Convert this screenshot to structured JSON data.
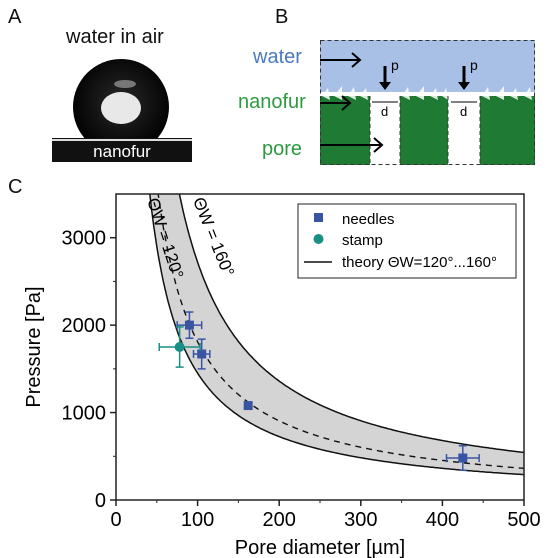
{
  "panels": {
    "a_label": "A",
    "b_label": "B",
    "c_label": "C"
  },
  "panel_a": {
    "title": "water in air",
    "substrate_label": "nanofur"
  },
  "panel_b": {
    "water_label": "water",
    "nanofur_label": "nanofur",
    "pore_label": "pore",
    "pressure_symbol": "p",
    "diameter_symbol": "d",
    "colors": {
      "water": "#a9c0e6",
      "nanofur": "#1f7a34",
      "water_text": "#4a78c0",
      "green_text": "#2e9a40"
    }
  },
  "chart_data": {
    "type": "scatter",
    "xlabel": "Pore diameter [µm]",
    "ylabel": "Pressure [Pa]",
    "xlim": [
      0,
      500
    ],
    "ylim": [
      0,
      3500
    ],
    "x_ticks": [
      0,
      100,
      200,
      300,
      400,
      500
    ],
    "y_ticks": [
      0,
      1000,
      2000,
      3000
    ],
    "grid": false,
    "legend_position": "top-right",
    "series": [
      {
        "name": "needles",
        "marker": "square",
        "color": "#3a54a4",
        "points": [
          {
            "x": 90,
            "y": 2000,
            "xerr": 15,
            "yerr": 150
          },
          {
            "x": 105,
            "y": 1670,
            "xerr": 10,
            "yerr": 170
          },
          {
            "x": 162,
            "y": 1080,
            "xerr": 0,
            "yerr": 0
          },
          {
            "x": 425,
            "y": 480,
            "xerr": 20,
            "yerr": 140
          }
        ]
      },
      {
        "name": "stamp",
        "marker": "circle",
        "color": "#1a8f87",
        "points": [
          {
            "x": 78,
            "y": 1750,
            "xerr": 25,
            "yerr": 230
          }
        ]
      },
      {
        "name": "theory ΘW=120°...160°",
        "marker": "line",
        "color": "#111111",
        "band_fill": "#d4d4d4",
        "dashed_reference": "middle curve",
        "curves": [
          {
            "label": "ΘW = 120°",
            "constant": 145000
          },
          {
            "label": "ΘW = 160°",
            "constant": 272000
          },
          {
            "label": "middle",
            "constant": 181000
          }
        ]
      }
    ],
    "annotations": [
      "ΘW = 120°",
      "ΘW = 160°"
    ]
  },
  "legend": {
    "needles": "needles",
    "stamp": "stamp",
    "theory": "theory ΘW=120°...160°"
  }
}
